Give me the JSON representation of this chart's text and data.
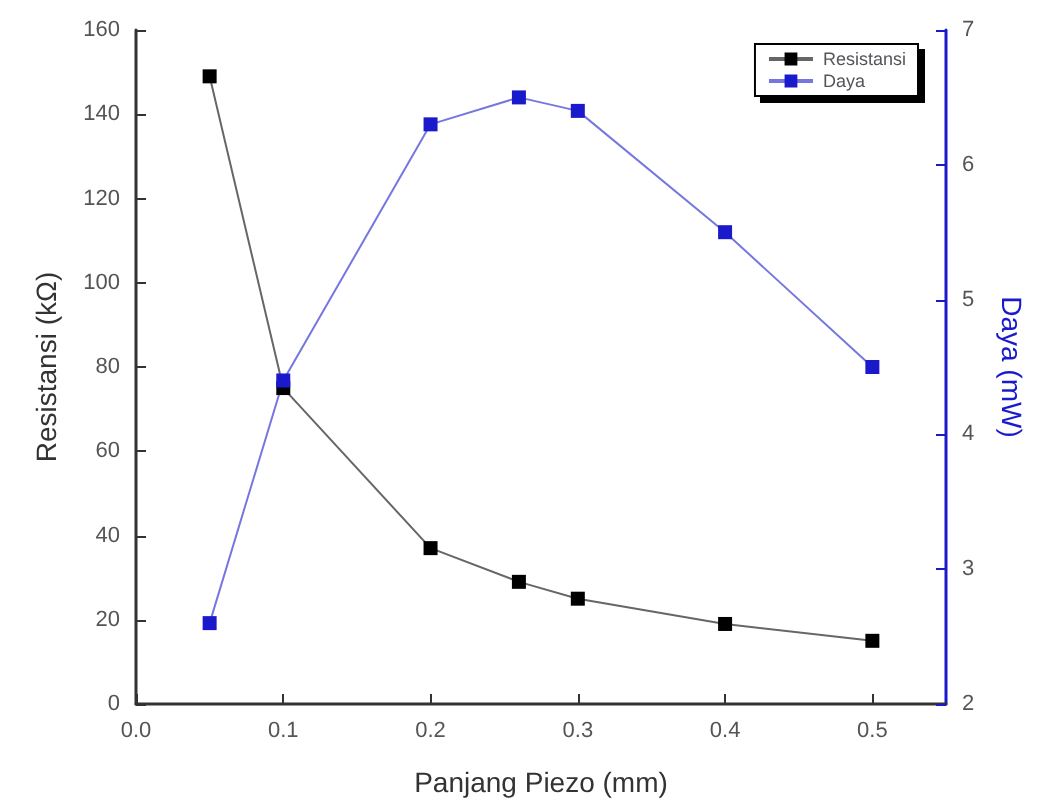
{
  "chart_data": {
    "type": "line",
    "xlabel": "Panjang Piezo (mm)",
    "ylabel": "Resistansi (kΩ)",
    "y2label": "Daya (mW)",
    "xlim": [
      0,
      0.55
    ],
    "xticks": [
      {
        "value": 0,
        "label": "0.0"
      },
      0.1,
      0.2,
      0.3,
      0.4,
      0.5
    ],
    "ylim": [
      0,
      160
    ],
    "yticks": [
      0,
      20,
      40,
      60,
      80,
      100,
      120,
      140,
      160
    ],
    "y2lim": [
      2,
      7
    ],
    "y2ticks": [
      2,
      3,
      4,
      5,
      6,
      7
    ],
    "x": [
      0.05,
      0.1,
      0.2,
      0.26,
      0.3,
      0.4,
      0.5
    ],
    "series": [
      {
        "name": "Resistansi",
        "color": "#000000",
        "values": [
          149,
          75,
          37,
          29,
          25,
          19,
          15
        ]
      },
      {
        "name": "Daya",
        "color": "#1a1acc",
        "axis": "y2",
        "values": [
          2.6,
          4.4,
          6.3,
          6.5,
          6.4,
          5.5,
          4.5
        ]
      }
    ],
    "marker": "square",
    "legend": "top right",
    "grid": false
  }
}
